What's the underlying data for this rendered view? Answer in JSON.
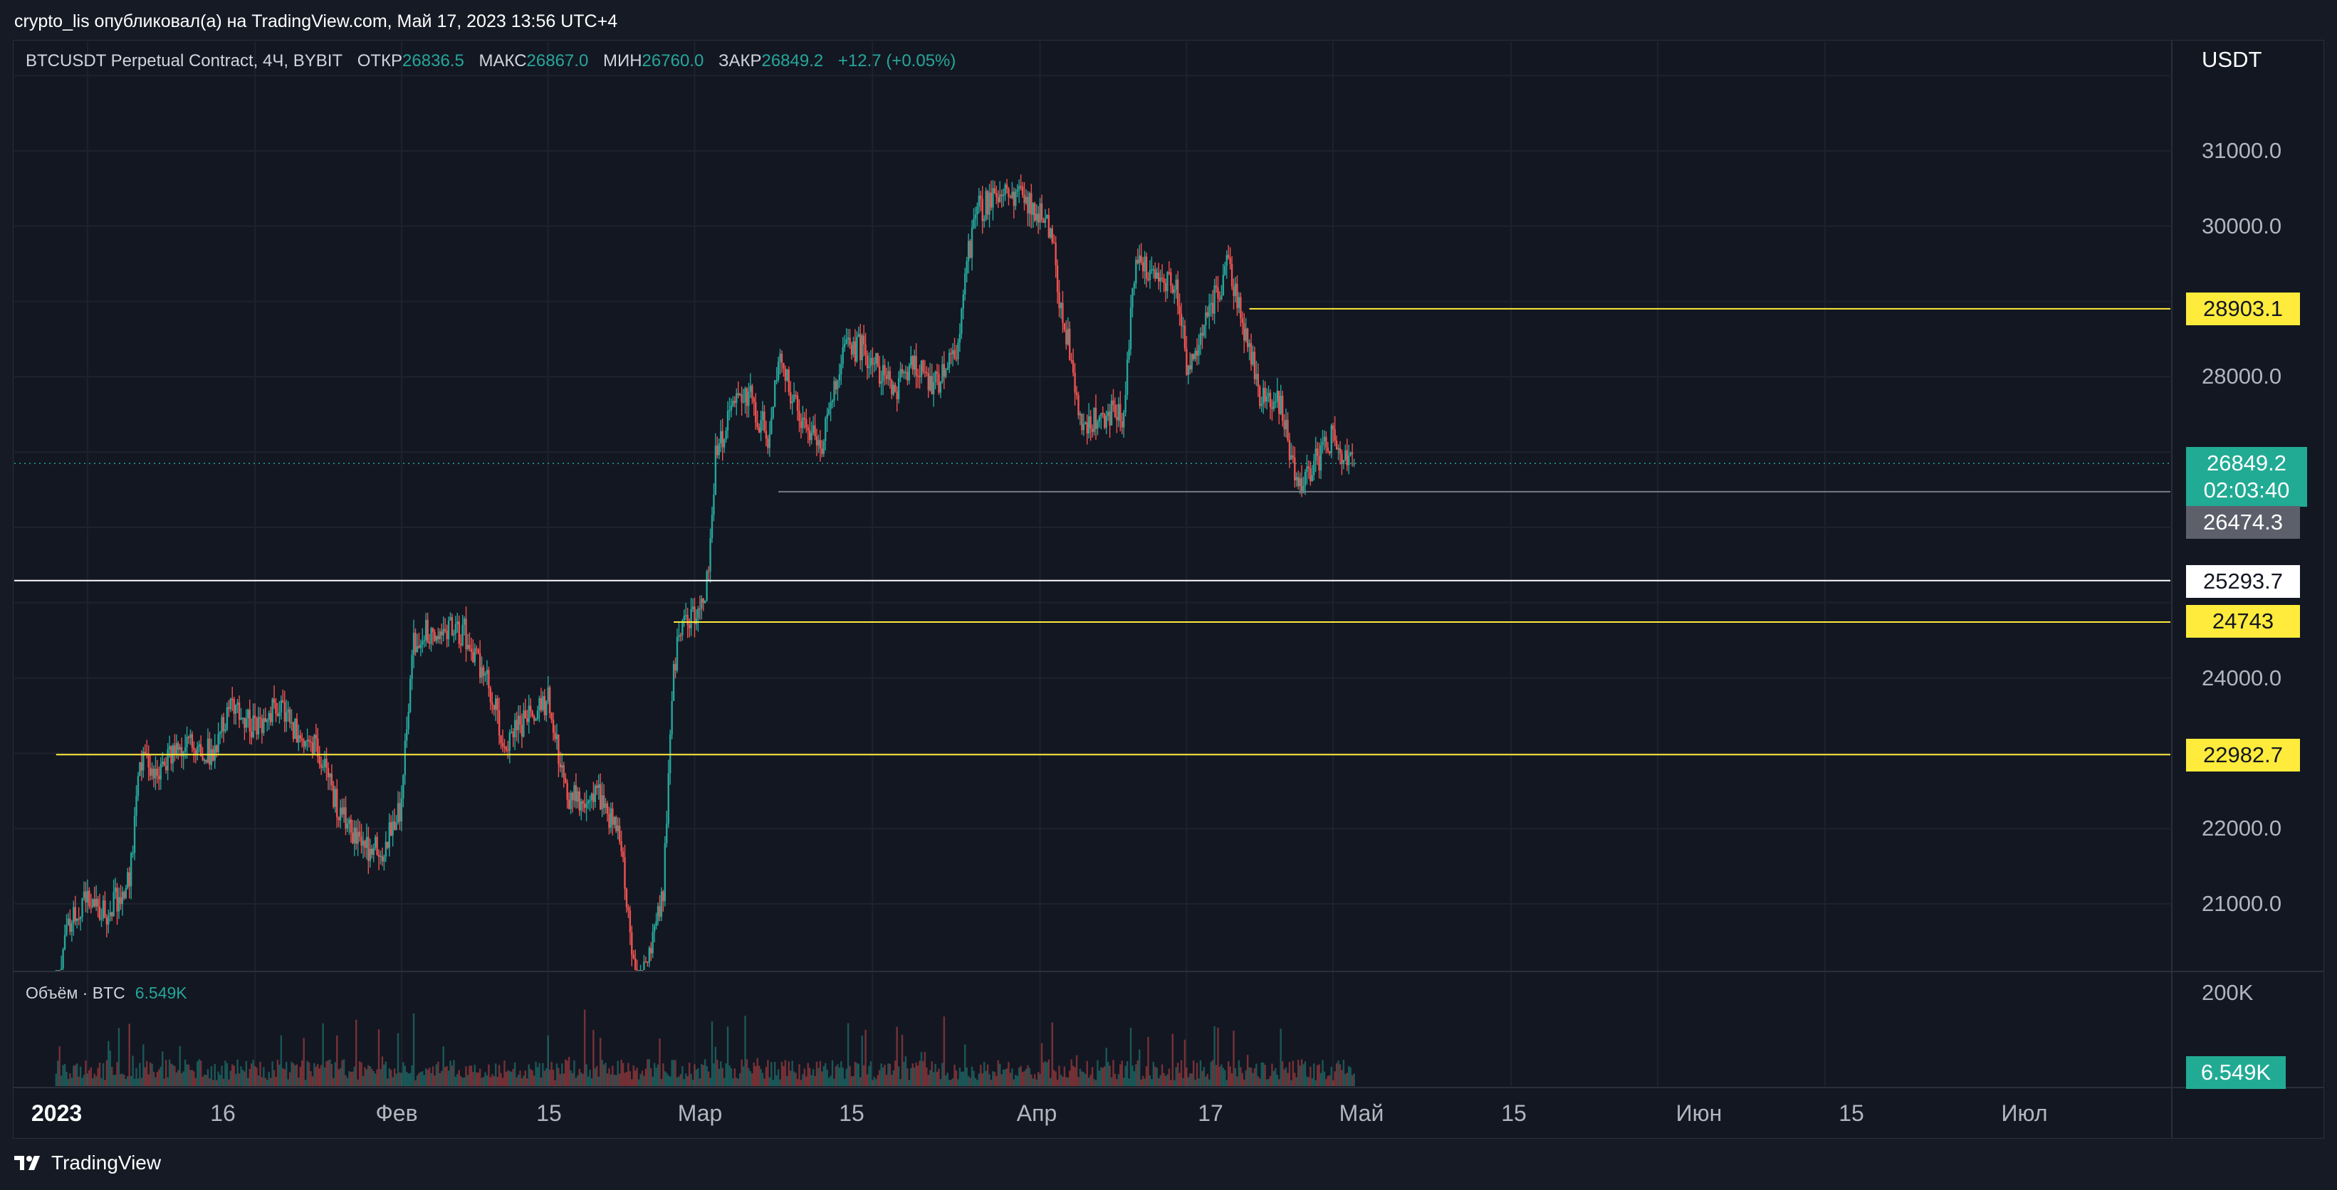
{
  "header": {
    "published_text": "crypto_lis опубликовал(а) на TradingView.com, Май 17, 2023 13:56 UTC+4"
  },
  "legend": {
    "symbol": "BTCUSDT Perpetual Contract, 4Ч, BYBIT",
    "open_label": "ОТКР",
    "open": "26836.5",
    "high_label": "МАКС",
    "high": "26867.0",
    "low_label": "МИН",
    "low": "26760.0",
    "close_label": "ЗАКР",
    "close": "26849.2",
    "change": "+12.7 (+0.05%)"
  },
  "volume_legend": {
    "label": "Объём · BTC",
    "value": "6.549K"
  },
  "price_axis": {
    "currency": "USDT",
    "ticks": [
      "31000.0",
      "30000.0",
      "28000.0",
      "24000.0",
      "22000.0",
      "21000.0"
    ],
    "last_price": "26849.2",
    "countdown": "02:03:40",
    "volume_axis_label": "200K",
    "volume_last": "6.549K"
  },
  "time_axis": {
    "year": "2023",
    "labels": [
      "16",
      "Фев",
      "15",
      "Мар",
      "15",
      "Апр",
      "17",
      "Май",
      "15",
      "Июн",
      "15",
      "Июл"
    ]
  },
  "colors": {
    "up": "#26a69a",
    "down": "#ef5350",
    "yellow_level": "#ffeb3b",
    "white_level": "#ffffff",
    "grey_level": "#787b86",
    "background": "#131722"
  },
  "chart_data": {
    "type": "candlestick",
    "symbol": "BTCUSDT Perpetual Contract",
    "interval": "4Ч",
    "exchange": "BYBIT",
    "y_unit": "USDT",
    "price_range": [
      20800,
      31000
    ],
    "x_range": [
      "2023-01-09",
      "2023-07-05"
    ],
    "grid": true,
    "last_ohlc": {
      "open": 26836.5,
      "high": 26867.0,
      "low": 26760.0,
      "close": 26849.2
    },
    "levels": [
      {
        "price": 28903.1,
        "color": "yellow",
        "from": "2023-05-07"
      },
      {
        "price": 26474.3,
        "color": "grey",
        "from": "2023-03-23"
      },
      {
        "price": 25293.7,
        "color": "white",
        "from": "2023-01-09"
      },
      {
        "price": 24743.0,
        "color": "yellow",
        "from": "2023-03-13"
      },
      {
        "price": 22982.7,
        "color": "yellow",
        "from": "2023-01-13"
      }
    ],
    "price_path": [
      {
        "date": "2023-01-13",
        "close": 19300
      },
      {
        "date": "2023-01-14",
        "close": 20700
      },
      {
        "date": "2023-01-16",
        "close": 21050
      },
      {
        "date": "2023-01-18",
        "close": 20900
      },
      {
        "date": "2023-01-20",
        "close": 21300
      },
      {
        "date": "2023-01-21",
        "close": 22900
      },
      {
        "date": "2023-01-23",
        "close": 22800
      },
      {
        "date": "2023-01-25",
        "close": 23100
      },
      {
        "date": "2023-01-28",
        "close": 23000
      },
      {
        "date": "2023-01-30",
        "close": 23700
      },
      {
        "date": "2023-02-01",
        "close": 23300
      },
      {
        "date": "2023-02-03",
        "close": 23600
      },
      {
        "date": "2023-02-05",
        "close": 23300
      },
      {
        "date": "2023-02-07",
        "close": 23100
      },
      {
        "date": "2023-02-09",
        "close": 22200
      },
      {
        "date": "2023-02-11",
        "close": 21800
      },
      {
        "date": "2023-02-13",
        "close": 21700
      },
      {
        "date": "2023-02-15",
        "close": 22300
      },
      {
        "date": "2023-02-16",
        "close": 24400
      },
      {
        "date": "2023-02-17",
        "close": 24600
      },
      {
        "date": "2023-02-19",
        "close": 24700
      },
      {
        "date": "2023-02-21",
        "close": 24600
      },
      {
        "date": "2023-02-23",
        "close": 24000
      },
      {
        "date": "2023-02-25",
        "close": 23100
      },
      {
        "date": "2023-02-27",
        "close": 23500
      },
      {
        "date": "2023-03-01",
        "close": 23700
      },
      {
        "date": "2023-03-03",
        "close": 22400
      },
      {
        "date": "2023-03-06",
        "close": 22400
      },
      {
        "date": "2023-03-08",
        "close": 21800
      },
      {
        "date": "2023-03-09",
        "close": 20300
      },
      {
        "date": "2023-03-10",
        "close": 20000
      },
      {
        "date": "2023-03-12",
        "close": 21200
      },
      {
        "date": "2023-03-13",
        "close": 24200
      },
      {
        "date": "2023-03-14",
        "close": 24700
      },
      {
        "date": "2023-03-16",
        "close": 24900
      },
      {
        "date": "2023-03-17",
        "close": 26900
      },
      {
        "date": "2023-03-18",
        "close": 27400
      },
      {
        "date": "2023-03-20",
        "close": 27800
      },
      {
        "date": "2023-03-22",
        "close": 27200
      },
      {
        "date": "2023-03-23",
        "close": 28300
      },
      {
        "date": "2023-03-25",
        "close": 27500
      },
      {
        "date": "2023-03-27",
        "close": 27000
      },
      {
        "date": "2023-03-29",
        "close": 28300
      },
      {
        "date": "2023-03-31",
        "close": 28400
      },
      {
        "date": "2023-04-03",
        "close": 27800
      },
      {
        "date": "2023-04-05",
        "close": 28200
      },
      {
        "date": "2023-04-07",
        "close": 27900
      },
      {
        "date": "2023-04-09",
        "close": 28300
      },
      {
        "date": "2023-04-10",
        "close": 29500
      },
      {
        "date": "2023-04-11",
        "close": 30200
      },
      {
        "date": "2023-04-13",
        "close": 30400
      },
      {
        "date": "2023-04-14",
        "close": 30500
      },
      {
        "date": "2023-04-16",
        "close": 30300
      },
      {
        "date": "2023-04-18",
        "close": 30000
      },
      {
        "date": "2023-04-19",
        "close": 28800
      },
      {
        "date": "2023-04-20",
        "close": 28300
      },
      {
        "date": "2023-04-21",
        "close": 27300
      },
      {
        "date": "2023-04-23",
        "close": 27500
      },
      {
        "date": "2023-04-25",
        "close": 27500
      },
      {
        "date": "2023-04-26",
        "close": 29400
      },
      {
        "date": "2023-04-27",
        "close": 29500
      },
      {
        "date": "2023-04-29",
        "close": 29300
      },
      {
        "date": "2023-04-30",
        "close": 29300
      },
      {
        "date": "2023-05-01",
        "close": 28100
      },
      {
        "date": "2023-05-03",
        "close": 28800
      },
      {
        "date": "2023-05-05",
        "close": 29500
      },
      {
        "date": "2023-05-06",
        "close": 28900
      },
      {
        "date": "2023-05-08",
        "close": 27800
      },
      {
        "date": "2023-05-10",
        "close": 27600
      },
      {
        "date": "2023-05-11",
        "close": 26900
      },
      {
        "date": "2023-05-12",
        "close": 26600
      },
      {
        "date": "2023-05-13",
        "close": 26800
      },
      {
        "date": "2023-05-15",
        "close": 27200
      },
      {
        "date": "2023-05-16",
        "close": 27000
      },
      {
        "date": "2023-05-17",
        "close": 26849.2
      }
    ]
  }
}
